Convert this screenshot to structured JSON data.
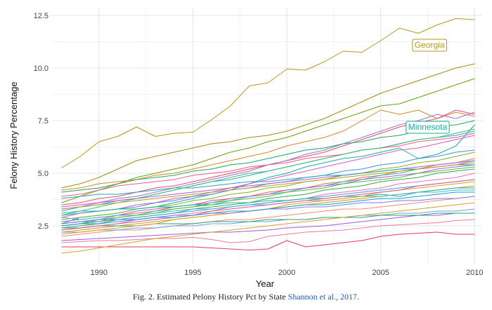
{
  "chart_data": {
    "type": "line",
    "xlabel": "Year",
    "ylabel": "Felony History Percentage",
    "xlim": [
      1987.5,
      2010.4
    ],
    "ylim": [
      0.7,
      12.9
    ],
    "xticks": [
      1990,
      1995,
      2000,
      2005,
      2010
    ],
    "yticks": [
      2.5,
      5.0,
      7.5,
      10.0,
      12.5
    ],
    "ytick_labels": [
      "2.5",
      "5.0",
      "7.5",
      "10.0",
      "12.5"
    ],
    "grid": true,
    "x": [
      1988,
      1989,
      1990,
      1991,
      1992,
      1993,
      1994,
      1995,
      1996,
      1997,
      1998,
      1999,
      2000,
      2001,
      2002,
      2003,
      2004,
      2005,
      2006,
      2007,
      2008,
      2009,
      2010
    ],
    "annotations": [
      {
        "text": "Georgia",
        "series": "Georgia",
        "x": 2007.6,
        "y": 11.1,
        "color": "#b59b10"
      },
      {
        "text": "Minnesota",
        "series": "Minnesota",
        "x": 2007.5,
        "y": 7.2,
        "color": "#10b3a0"
      }
    ],
    "series": [
      {
        "name": "Georgia",
        "color": "#b59b10",
        "values": [
          5.25,
          5.8,
          6.5,
          6.75,
          7.2,
          6.75,
          6.9,
          6.95,
          7.55,
          8.2,
          9.15,
          9.3,
          9.95,
          9.9,
          10.3,
          10.8,
          10.75,
          11.3,
          11.9,
          11.65,
          12.05,
          12.35,
          12.3
        ]
      },
      {
        "name": "Minnesota",
        "color": "#10b3a0",
        "values": [
          2.6,
          2.9,
          3.0,
          3.1,
          3.3,
          3.4,
          3.6,
          3.8,
          4.0,
          4.2,
          4.5,
          4.8,
          5.0,
          5.3,
          5.5,
          5.7,
          5.8,
          6.0,
          6.2,
          5.7,
          5.9,
          6.3,
          7.3
        ]
      },
      {
        "name": "",
        "color": "#6e9d0f",
        "values": [
          3.6,
          3.9,
          4.2,
          4.5,
          4.8,
          5.0,
          5.2,
          5.4,
          5.7,
          6.0,
          6.2,
          6.5,
          6.7,
          7.0,
          7.3,
          7.6,
          7.9,
          8.2,
          8.3,
          8.6,
          8.9,
          9.2,
          9.5
        ]
      },
      {
        "name": "",
        "color": "#a68a10",
        "values": [
          4.3,
          4.5,
          4.8,
          5.2,
          5.6,
          5.8,
          6.0,
          6.2,
          6.4,
          6.5,
          6.7,
          6.8,
          7.0,
          7.3,
          7.6,
          8.0,
          8.4,
          8.8,
          9.1,
          9.4,
          9.7,
          10.0,
          10.2
        ]
      },
      {
        "name": "",
        "color": "#d68a2a",
        "values": [
          4.2,
          4.3,
          4.5,
          4.6,
          4.7,
          4.9,
          5.0,
          5.2,
          5.4,
          5.6,
          5.8,
          6.0,
          6.3,
          6.5,
          6.7,
          7.0,
          7.5,
          8.0,
          7.8,
          8.0,
          7.6,
          7.9,
          7.7
        ]
      },
      {
        "name": "",
        "color": "#e64b6d",
        "values": [
          3.5,
          3.6,
          3.8,
          3.9,
          4.1,
          4.3,
          4.4,
          4.6,
          4.8,
          5.0,
          5.2,
          5.4,
          5.6,
          5.8,
          6.0,
          6.3,
          6.6,
          6.9,
          7.2,
          7.4,
          7.6,
          8.0,
          7.8
        ]
      },
      {
        "name": "",
        "color": "#9673d6",
        "values": [
          3.3,
          3.4,
          3.6,
          3.8,
          3.9,
          4.1,
          4.3,
          4.5,
          4.7,
          4.9,
          5.1,
          5.4,
          5.6,
          5.9,
          6.1,
          6.4,
          6.7,
          7.0,
          7.3,
          7.5,
          7.8,
          7.6,
          7.9
        ]
      },
      {
        "name": "",
        "color": "#1fa55f",
        "values": [
          4.1,
          4.2,
          4.3,
          4.5,
          4.7,
          4.8,
          4.9,
          5.1,
          5.2,
          5.4,
          5.5,
          5.7,
          5.9,
          6.1,
          6.2,
          6.4,
          6.5,
          6.7,
          6.8,
          7.0,
          7.2,
          7.3,
          7.5
        ]
      },
      {
        "name": "",
        "color": "#27a8c9",
        "values": [
          3.2,
          3.4,
          3.5,
          3.7,
          3.8,
          4.0,
          4.2,
          4.4,
          4.6,
          4.7,
          4.9,
          5.1,
          5.3,
          5.5,
          5.7,
          5.9,
          6.1,
          6.2,
          6.4,
          6.6,
          6.7,
          6.8,
          7.0
        ]
      },
      {
        "name": "",
        "color": "#d85ac8",
        "values": [
          2.9,
          3.1,
          3.2,
          3.3,
          3.5,
          3.6,
          3.8,
          3.9,
          4.1,
          4.3,
          4.5,
          4.7,
          4.9,
          5.1,
          5.3,
          5.5,
          5.7,
          5.9,
          6.1,
          6.2,
          6.4,
          6.6,
          6.8
        ]
      },
      {
        "name": "",
        "color": "#4c8cdc",
        "values": [
          3.0,
          3.1,
          3.2,
          3.3,
          3.4,
          3.6,
          3.7,
          3.9,
          4.0,
          4.2,
          4.3,
          4.5,
          4.6,
          4.8,
          4.9,
          5.1,
          5.2,
          5.4,
          5.5,
          5.7,
          5.8,
          6.0,
          6.1
        ]
      },
      {
        "name": "",
        "color": "#7fb61f",
        "values": [
          2.8,
          2.9,
          3.0,
          3.1,
          3.3,
          3.4,
          3.5,
          3.7,
          3.8,
          4.0,
          4.1,
          4.3,
          4.4,
          4.6,
          4.7,
          4.9,
          5.0,
          5.2,
          5.3,
          5.5,
          5.6,
          5.8,
          6.0
        ]
      },
      {
        "name": "",
        "color": "#f06a3c",
        "values": [
          2.6,
          2.7,
          2.8,
          3.0,
          3.1,
          3.2,
          3.4,
          3.5,
          3.6,
          3.8,
          3.9,
          4.1,
          4.2,
          4.3,
          4.5,
          4.6,
          4.8,
          4.9,
          5.1,
          5.2,
          5.4,
          5.5,
          5.7
        ]
      },
      {
        "name": "",
        "color": "#1ec1b3",
        "values": [
          2.5,
          2.6,
          2.8,
          2.9,
          3.0,
          3.2,
          3.3,
          3.4,
          3.6,
          3.7,
          3.9,
          4.0,
          4.1,
          4.3,
          4.4,
          4.6,
          4.7,
          4.9,
          5.0,
          5.2,
          5.3,
          5.4,
          5.6
        ]
      },
      {
        "name": "",
        "color": "#b05ae0",
        "values": [
          2.7,
          2.8,
          2.9,
          3.0,
          3.2,
          3.3,
          3.4,
          3.5,
          3.7,
          3.8,
          3.9,
          4.0,
          4.2,
          4.3,
          4.4,
          4.5,
          4.7,
          4.8,
          4.9,
          5.0,
          5.2,
          5.3,
          5.4
        ]
      },
      {
        "name": "",
        "color": "#35a84a",
        "values": [
          2.4,
          2.5,
          2.6,
          2.8,
          2.9,
          3.0,
          3.1,
          3.3,
          3.4,
          3.5,
          3.6,
          3.8,
          3.9,
          4.0,
          4.2,
          4.3,
          4.4,
          4.6,
          4.7,
          4.8,
          5.0,
          5.1,
          5.2
        ]
      },
      {
        "name": "",
        "color": "#ec6fb8",
        "values": [
          2.3,
          2.4,
          2.5,
          2.6,
          2.8,
          2.9,
          3.0,
          3.1,
          3.2,
          3.4,
          3.5,
          3.6,
          3.7,
          3.8,
          4.0,
          4.1,
          4.2,
          4.3,
          4.5,
          4.6,
          4.7,
          4.8,
          5.0
        ]
      },
      {
        "name": "",
        "color": "#3d9fe0",
        "values": [
          2.6,
          2.7,
          2.8,
          2.8,
          2.9,
          3.0,
          3.1,
          3.2,
          3.3,
          3.4,
          3.5,
          3.6,
          3.7,
          3.8,
          3.9,
          4.0,
          4.1,
          4.2,
          4.3,
          4.4,
          4.5,
          4.6,
          4.7
        ]
      },
      {
        "name": "",
        "color": "#c89b1a",
        "values": [
          2.2,
          2.3,
          2.4,
          2.5,
          2.6,
          2.7,
          2.8,
          2.9,
          3.0,
          3.1,
          3.2,
          3.3,
          3.4,
          3.5,
          3.6,
          3.7,
          3.8,
          3.9,
          4.0,
          4.1,
          4.2,
          4.3,
          4.4
        ]
      },
      {
        "name": "",
        "color": "#12b89a",
        "values": [
          3.1,
          3.2,
          3.2,
          3.3,
          3.3,
          3.4,
          3.4,
          3.5,
          3.5,
          3.6,
          3.6,
          3.7,
          3.7,
          3.8,
          3.8,
          3.9,
          3.9,
          4.0,
          3.9,
          4.1,
          4.2,
          4.3,
          4.3
        ]
      },
      {
        "name": "",
        "color": "#f08c6a",
        "values": [
          2.0,
          2.1,
          2.2,
          2.3,
          2.3,
          2.4,
          2.5,
          2.6,
          2.7,
          2.8,
          2.8,
          2.9,
          3.0,
          3.1,
          3.2,
          3.3,
          3.3,
          3.4,
          3.5,
          3.6,
          3.7,
          3.8,
          3.9
        ]
      },
      {
        "name": "",
        "color": "#6aa0e8",
        "values": [
          2.2,
          2.2,
          2.3,
          2.3,
          2.4,
          2.4,
          2.5,
          2.5,
          2.6,
          2.6,
          2.7,
          2.7,
          2.8,
          2.8,
          2.9,
          2.9,
          3.0,
          3.0,
          3.1,
          3.1,
          3.2,
          3.2,
          3.3
        ]
      },
      {
        "name": "",
        "color": "#9e5bd9",
        "values": [
          1.8,
          1.85,
          1.9,
          1.95,
          2.0,
          2.05,
          2.1,
          2.15,
          2.2,
          2.2,
          2.25,
          2.3,
          2.4,
          2.45,
          2.5,
          2.6,
          2.7,
          2.8,
          2.9,
          3.0,
          3.0,
          3.1,
          3.1
        ]
      },
      {
        "name": "",
        "color": "#2aa17a",
        "values": [
          2.4,
          2.4,
          2.5,
          2.5,
          2.5,
          2.6,
          2.6,
          2.6,
          2.7,
          2.7,
          2.7,
          2.8,
          2.8,
          2.8,
          2.9,
          2.9,
          2.9,
          3.0,
          3.0,
          3.0,
          3.1,
          3.1,
          3.1
        ]
      },
      {
        "name": "",
        "color": "#f07a9a",
        "values": [
          1.7,
          1.75,
          1.8,
          1.8,
          1.85,
          1.9,
          1.9,
          1.95,
          1.85,
          1.7,
          1.75,
          2.0,
          2.1,
          2.2,
          2.25,
          2.3,
          2.4,
          2.5,
          2.55,
          2.6,
          2.65,
          2.75,
          2.8
        ]
      },
      {
        "name": "",
        "color": "#e83a5e",
        "values": [
          1.5,
          1.5,
          1.5,
          1.5,
          1.5,
          1.5,
          1.5,
          1.5,
          1.45,
          1.4,
          1.35,
          1.4,
          1.8,
          1.5,
          1.6,
          1.7,
          1.8,
          2.0,
          2.1,
          2.15,
          2.2,
          2.1,
          2.1
        ]
      },
      {
        "name": "",
        "color": "#d4a12a",
        "values": [
          1.2,
          1.3,
          1.45,
          1.6,
          1.75,
          1.9,
          2.0,
          2.1,
          2.2,
          2.3,
          2.4,
          2.5,
          2.6,
          2.7,
          2.8,
          2.9,
          3.0,
          3.1,
          3.2,
          3.3,
          3.4,
          3.5,
          3.6
        ]
      },
      {
        "name": "",
        "color": "#4fb0d8",
        "values": [
          2.9,
          2.8,
          2.9,
          3.0,
          3.0,
          3.1,
          3.2,
          3.3,
          3.3,
          3.4,
          3.5,
          3.5,
          3.6,
          3.7,
          3.7,
          3.8,
          3.9,
          3.9,
          4.0,
          4.1,
          4.1,
          4.2,
          4.2
        ]
      },
      {
        "name": "",
        "color": "#c44fd0",
        "values": [
          3.4,
          3.5,
          3.6,
          3.7,
          3.8,
          3.9,
          4.0,
          4.1,
          4.2,
          4.3,
          4.4,
          4.5,
          4.6,
          4.7,
          4.8,
          4.9,
          5.0,
          5.1,
          5.2,
          5.3,
          5.4,
          5.5,
          5.6
        ]
      },
      {
        "name": "",
        "color": "#58b83a",
        "values": [
          2.5,
          2.6,
          2.7,
          2.9,
          3.0,
          3.1,
          3.3,
          3.4,
          3.5,
          3.7,
          3.8,
          3.9,
          4.1,
          4.2,
          4.3,
          4.5,
          4.6,
          4.7,
          4.8,
          5.0,
          5.1,
          5.2,
          5.3
        ]
      },
      {
        "name": "",
        "color": "#e59a1c",
        "values": [
          2.1,
          2.2,
          2.3,
          2.4,
          2.5,
          2.6,
          2.8,
          2.9,
          3.0,
          3.1,
          3.2,
          3.3,
          3.5,
          3.6,
          3.7,
          3.8,
          3.9,
          4.1,
          4.2,
          4.3,
          4.4,
          4.5,
          4.6
        ]
      },
      {
        "name": "",
        "color": "#23a7b0",
        "values": [
          3.8,
          3.9,
          4.0,
          4.0,
          4.1,
          4.2,
          4.3,
          4.3,
          4.4,
          4.5,
          4.6,
          4.6,
          4.7,
          4.8,
          4.9,
          4.9,
          5.0,
          5.1,
          5.2,
          5.2,
          5.3,
          5.4,
          5.4
        ]
      },
      {
        "name": "",
        "color": "#f25b8a",
        "values": [
          3.9,
          4.0,
          4.2,
          4.4,
          4.5,
          4.6,
          4.7,
          4.9,
          5.0,
          5.1,
          5.3,
          5.4,
          5.5,
          5.7,
          5.8,
          5.9,
          6.1,
          6.2,
          6.3,
          6.5,
          6.6,
          6.7,
          6.9
        ]
      },
      {
        "name": "",
        "color": "#7d7de0",
        "values": [
          2.6,
          2.7,
          2.7,
          2.8,
          2.8,
          2.9,
          3.0,
          3.0,
          3.1,
          3.1,
          3.2,
          3.3,
          3.3,
          3.4,
          3.4,
          3.5,
          3.6,
          3.6,
          3.7,
          3.7,
          3.8,
          3.8,
          3.9
        ]
      },
      {
        "name": "",
        "color": "#3cbf6d",
        "values": [
          3.0,
          3.2,
          3.4,
          3.6,
          3.8,
          4.0,
          4.2,
          4.4,
          4.6,
          4.8,
          5.0,
          5.1,
          5.3,
          5.5,
          5.7,
          5.9,
          6.1,
          6.2,
          6.4,
          6.6,
          6.7,
          6.9,
          7.1
        ]
      },
      {
        "name": "",
        "color": "#b0a11e",
        "values": [
          3.3,
          3.4,
          3.5,
          3.6,
          3.7,
          3.8,
          3.9,
          4.0,
          4.1,
          4.2,
          4.3,
          4.4,
          4.5,
          4.6,
          4.7,
          4.8,
          4.9,
          5.0,
          5.1,
          5.2,
          5.3,
          5.4,
          5.5
        ]
      },
      {
        "name": "",
        "color": "#e0558f",
        "values": [
          2.3,
          2.4,
          2.5,
          2.6,
          2.7,
          2.8,
          2.9,
          3.0,
          3.2,
          3.3,
          3.4,
          3.5,
          3.6,
          3.7,
          3.8,
          3.9,
          4.0,
          4.1,
          4.2,
          4.4,
          4.5,
          4.6,
          4.7
        ]
      },
      {
        "name": "",
        "color": "#1b9ad0",
        "values": [
          2.5,
          2.6,
          2.6,
          2.7,
          2.8,
          2.9,
          2.9,
          3.0,
          3.1,
          3.2,
          3.2,
          3.3,
          3.4,
          3.5,
          3.5,
          3.6,
          3.7,
          3.8,
          3.8,
          3.9,
          4.0,
          4.1,
          4.1
        ]
      }
    ]
  },
  "caption": {
    "label": "Fig. 2.  Estimated Pelony History Pct by State ",
    "citation": "Shannon et al., 2017",
    "end": "."
  }
}
